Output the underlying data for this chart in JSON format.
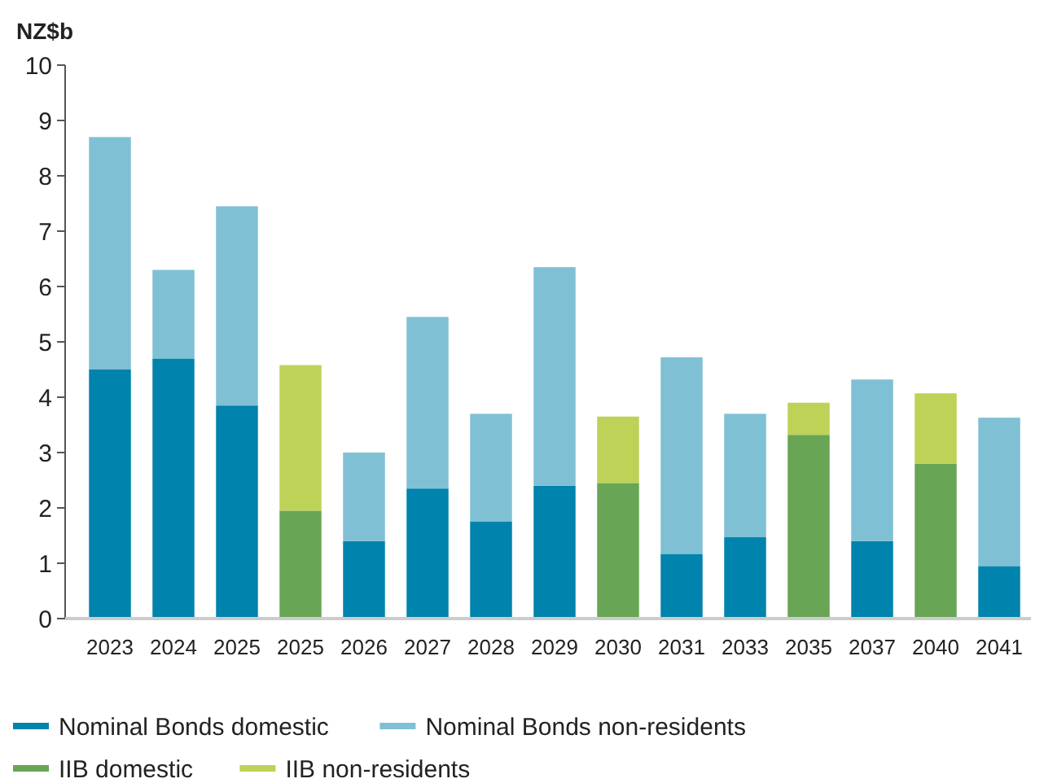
{
  "chart_data": {
    "type": "bar",
    "stacked": true,
    "ylabel": "NZ$b",
    "categories": [
      "2023",
      "2024",
      "2025",
      "2025",
      "2026",
      "2027",
      "2028",
      "2029",
      "2030",
      "2031",
      "2033",
      "2035",
      "2037",
      "2040",
      "2041"
    ],
    "series": [
      {
        "name": "Nominal Bonds domestic",
        "color": "#0083ad",
        "values": [
          4.5,
          4.7,
          3.85,
          null,
          1.4,
          2.35,
          1.75,
          2.4,
          null,
          1.17,
          1.47,
          null,
          1.4,
          null,
          0.95
        ]
      },
      {
        "name": "Nominal Bonds non-residents",
        "color": "#80c0d4",
        "values": [
          4.2,
          1.6,
          3.6,
          null,
          1.6,
          3.1,
          1.95,
          3.95,
          null,
          3.55,
          2.23,
          null,
          2.92,
          null,
          2.68
        ]
      },
      {
        "name": "IIB domestic",
        "color": "#68a554",
        "values": [
          null,
          null,
          null,
          1.95,
          null,
          null,
          null,
          null,
          2.45,
          null,
          null,
          3.32,
          null,
          2.8,
          null
        ]
      },
      {
        "name": "IIB non-residents",
        "color": "#bdd257",
        "values": [
          null,
          null,
          null,
          2.63,
          null,
          null,
          null,
          null,
          1.2,
          null,
          null,
          0.58,
          null,
          1.27,
          null
        ]
      }
    ],
    "ylim": [
      0,
      10
    ],
    "yticks": [
      0,
      1,
      2,
      3,
      4,
      5,
      6,
      7,
      8,
      9,
      10
    ],
    "grid": false,
    "legend": "bottom"
  }
}
